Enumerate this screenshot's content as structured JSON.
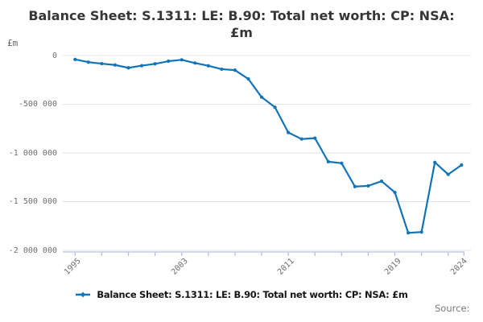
{
  "header": {
    "title_line1": "Balance Sheet: S.1311: LE: B.90: Total net worth: CP: NSA:",
    "title_line2": "£m",
    "unit_label": "£m"
  },
  "legend": {
    "label": "Balance Sheet: S.1311: LE: B.90: Total net worth: CP: NSA: £m",
    "marker": "line-with-diamond-marker"
  },
  "source": {
    "label": "Source:"
  },
  "colors": {
    "line": "#1274b8",
    "grid": "#e3e3e3",
    "axis": "#b6c0d9",
    "text_muted": "#6d6d6d"
  },
  "chart_data": {
    "type": "line",
    "title": "Balance Sheet: S.1311: LE: B.90: Total net worth: CP: NSA: £m",
    "ylabel": "£m",
    "xlabel": "",
    "series_name": "Balance Sheet: S.1311: LE: B.90: Total net worth: CP: NSA: £m",
    "x": [
      1995,
      1996,
      1997,
      1998,
      1999,
      2000,
      2001,
      2002,
      2003,
      2004,
      2005,
      2006,
      2007,
      2008,
      2009,
      2010,
      2011,
      2012,
      2013,
      2014,
      2015,
      2016,
      2017,
      2018,
      2019,
      2020,
      2021,
      2022,
      2023,
      2024
    ],
    "values": [
      -40000,
      -68000,
      -83000,
      -97000,
      -126000,
      -104000,
      -85000,
      -58000,
      -44000,
      -77000,
      -105000,
      -140000,
      -150000,
      -240000,
      -427000,
      -531000,
      -790000,
      -857000,
      -848000,
      -1090000,
      -1105000,
      -1345000,
      -1338000,
      -1290000,
      -1405000,
      -1820000,
      -1812000,
      -1097000,
      -1220000,
      -1124000
    ],
    "xlim": [
      1994.1,
      2024.4
    ],
    "ylim": [
      -2020000,
      115000
    ],
    "x_tick_interval": 2,
    "x_tick_labels_shown": [
      1995,
      2003,
      2011,
      2019,
      2024
    ],
    "y_ticks": [
      0,
      -500000,
      -1000000,
      -1500000,
      -2000000
    ],
    "y_tick_labels": [
      "0",
      "-500 000",
      "-1 000 000",
      "-1 500 000",
      "-2 000 000"
    ],
    "grid": "horizontal-only",
    "legend_position": "bottom",
    "marker_style": "small-dot"
  }
}
